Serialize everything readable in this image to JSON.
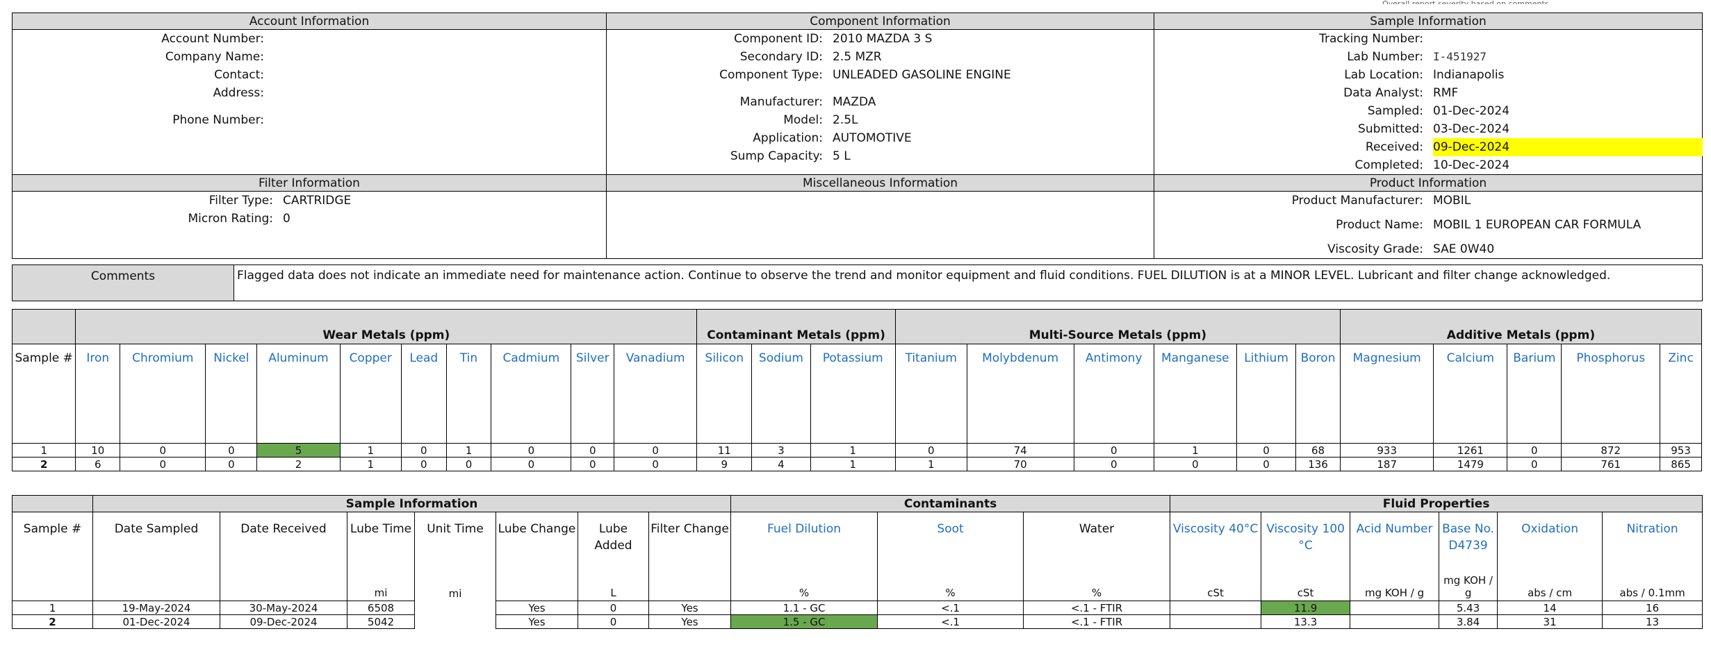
{
  "corner_note": "Overall report severity based on comments.",
  "account": {
    "title": "Account Information",
    "fields": [
      {
        "label": "Account Number:",
        "value": ""
      },
      {
        "label": "Company Name:",
        "value": ""
      },
      {
        "label": "Contact:",
        "value": ""
      },
      {
        "label": "Address:",
        "value": ""
      },
      {
        "label": "Phone Number:",
        "value": ""
      }
    ]
  },
  "component": {
    "title": "Component Information",
    "component_id": {
      "label": "Component ID:",
      "value": "2010 MAZDA 3 S"
    },
    "secondary_id": {
      "label": "Secondary ID:",
      "value": "2.5 MZR"
    },
    "component_type": {
      "label": "Component Type:",
      "value": "UNLEADED GASOLINE ENGINE"
    },
    "manufacturer": {
      "label": "Manufacturer:",
      "value": "MAZDA"
    },
    "model": {
      "label": "Model:",
      "value": "2.5L"
    },
    "application": {
      "label": "Application:",
      "value": "AUTOMOTIVE"
    },
    "sump_capacity": {
      "label": "Sump Capacity:",
      "value": "5 L"
    }
  },
  "sample_info": {
    "title": "Sample Information",
    "tracking_number": {
      "label": "Tracking Number:",
      "value": ""
    },
    "lab_number": {
      "label": "Lab Number:",
      "value": "I-451927"
    },
    "lab_location": {
      "label": "Lab Location:",
      "value": "Indianapolis"
    },
    "data_analyst": {
      "label": "Data Analyst:",
      "value": "RMF"
    },
    "sampled": {
      "label": "Sampled:",
      "value": "01-Dec-2024"
    },
    "submitted": {
      "label": "Submitted:",
      "value": "03-Dec-2024"
    },
    "received": {
      "label": "Received:",
      "value": "09-Dec-2024"
    },
    "completed": {
      "label": "Completed:",
      "value": "10-Dec-2024"
    }
  },
  "filter": {
    "title": "Filter Information",
    "filter_type": {
      "label": "Filter Type:",
      "value": "CARTRIDGE"
    },
    "micron_rating": {
      "label": "Micron Rating:",
      "value": "0"
    }
  },
  "misc": {
    "title": "Miscellaneous Information"
  },
  "product": {
    "title": "Product Information",
    "manufacturer": {
      "label": "Product Manufacturer:",
      "value": "MOBIL"
    },
    "name": {
      "label": "Product Name:",
      "value": "MOBIL 1 EUROPEAN CAR FORMULA"
    },
    "viscosity_grade": {
      "label": "Viscosity Grade:",
      "value": "SAE 0W40"
    }
  },
  "comments": {
    "label": "Comments",
    "text": "Flagged data does not indicate an immediate need for maintenance action. Continue to observe the trend and monitor equipment and fluid conditions. FUEL DILUTION is at a MINOR LEVEL. Lubricant and filter change acknowledged."
  },
  "metals": {
    "groups": {
      "wear": "Wear Metals (ppm)",
      "contaminant": "Contaminant Metals (ppm)",
      "multi": "Multi-Source Metals (ppm)",
      "additive": "Additive Metals (ppm)"
    },
    "sample_header": "Sample #",
    "columns": [
      "Iron",
      "Chromium",
      "Nickel",
      "Aluminum",
      "Copper",
      "Lead",
      "Tin",
      "Cadmium",
      "Silver",
      "Vanadium",
      "Silicon",
      "Sodium",
      "Potassium",
      "Titanium",
      "Molybdenum",
      "Antimony",
      "Manganese",
      "Lithium",
      "Boron",
      "Magnesium",
      "Calcium",
      "Barium",
      "Phosphorus",
      "Zinc"
    ],
    "rows": [
      {
        "sample": "1",
        "values": [
          "10",
          "0",
          "0",
          "5",
          "1",
          "0",
          "1",
          "0",
          "0",
          "0",
          "11",
          "3",
          "1",
          "0",
          "74",
          "0",
          "1",
          "0",
          "68",
          "933",
          "1261",
          "0",
          "872",
          "953"
        ]
      },
      {
        "sample": "2",
        "values": [
          "6",
          "0",
          "0",
          "2",
          "1",
          "0",
          "0",
          "0",
          "0",
          "0",
          "9",
          "4",
          "1",
          "1",
          "70",
          "0",
          "0",
          "0",
          "136",
          "187",
          "1479",
          "0",
          "761",
          "865"
        ]
      }
    ],
    "flag_color": "#6aa84f"
  },
  "sample_table": {
    "groups": {
      "sample": "Sample Information",
      "contaminants": "Contaminants",
      "fluid": "Fluid Properties"
    },
    "headers": {
      "sample": "Sample #",
      "date_sampled": "Date Sampled",
      "date_received": "Date  Received",
      "lube_time": "Lube Time",
      "unit_time": "Unit Time",
      "lube_change": "Lube Change",
      "lube_added": "Lube Added",
      "filter_change": "Filter Change",
      "fuel_dilution": "Fuel Dilution",
      "soot": "Soot",
      "water": "Water",
      "visc40": "Viscosity 40°C",
      "visc100": "Viscosity 100 °C",
      "acid": "Acid Number",
      "base": "Base No. D4739",
      "oxidation": "Oxidation",
      "nitration": "Nitration"
    },
    "units": {
      "lube_time": "mi",
      "unit_time": "mi",
      "lube_added": "L",
      "fuel_dilution": "%",
      "soot": "%",
      "water": "%",
      "visc40": "cSt",
      "visc100": "cSt",
      "acid": "mg KOH / g",
      "base": "mg KOH / g",
      "oxidation": "abs / cm",
      "nitration": "abs / 0.1mm"
    },
    "rows": [
      {
        "sample": "1",
        "date_sampled": "19-May-2024",
        "date_received": "30-May-2024",
        "lube_time": "6508",
        "unit_time": "",
        "lube_change": "Yes",
        "lube_added": "0",
        "filter_change": "Yes",
        "fuel_dilution": "1.1 - GC",
        "soot": "<.1",
        "water": "<.1 - FTIR",
        "visc40": "",
        "visc100": "11.9",
        "acid": "",
        "base": "5.43",
        "oxidation": "14",
        "nitration": "16"
      },
      {
        "sample": "2",
        "date_sampled": "01-Dec-2024",
        "date_received": "09-Dec-2024",
        "lube_time": "5042",
        "unit_time": "",
        "lube_change": "Yes",
        "lube_added": "0",
        "filter_change": "Yes",
        "fuel_dilution": "1.5 - GC",
        "soot": "<.1",
        "water": "<.1 - FTIR",
        "visc40": "",
        "visc100": "13.3",
        "acid": "",
        "base": "3.84",
        "oxidation": "31",
        "nitration": "13"
      }
    ]
  },
  "colors": {
    "header_gray": "#d9d9d9",
    "highlight_yellow": "#ffff00",
    "flag_green": "#6aa84f",
    "link_blue": "#1f6fbf"
  }
}
